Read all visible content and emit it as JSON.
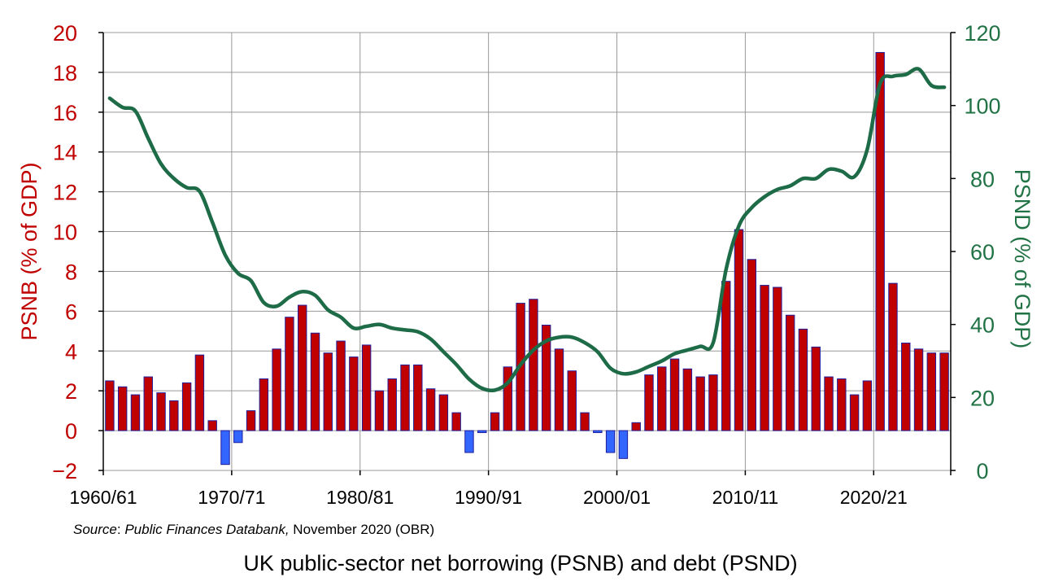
{
  "chart_data": {
    "type": "bar",
    "title": "UK public-sector net borrowing (PSNB) and debt (PSND)",
    "source": {
      "prefix": "Source",
      "sep": ": ",
      "name": "Public Finances Databank,",
      "rest": " November 2020 (OBR)"
    },
    "x_tick_labels": [
      "1960/61",
      "1970/71",
      "1980/81",
      "1990/91",
      "2000/01",
      "2010/11",
      "2020/21"
    ],
    "y_left": {
      "label": "PSNB (% of GDP)",
      "min": -2,
      "max": 20,
      "step": 2,
      "tick_labels": [
        "−2",
        "0",
        "2",
        "4",
        "6",
        "8",
        "10",
        "12",
        "14",
        "16",
        "18",
        "20"
      ],
      "color": "#c00000"
    },
    "y_right": {
      "label": "PSND (% of GDP)",
      "min": 0,
      "max": 120,
      "step": 20,
      "tick_labels": [
        "0",
        "20",
        "40",
        "60",
        "80",
        "100",
        "120"
      ],
      "color": "#217346"
    },
    "grid": true,
    "colors": {
      "bar_positive": "#c00000",
      "bar_negative": "#3366ff",
      "bar_edge": "#1f1f9e",
      "line": "#1e6b48",
      "grid": "#999999"
    },
    "x": [
      "1960/61",
      "1961/62",
      "1962/63",
      "1963/64",
      "1964/65",
      "1965/66",
      "1966/67",
      "1967/68",
      "1968/69",
      "1969/70",
      "1970/71",
      "1971/72",
      "1972/73",
      "1973/74",
      "1974/75",
      "1975/76",
      "1976/77",
      "1977/78",
      "1978/79",
      "1979/80",
      "1980/81",
      "1981/82",
      "1982/83",
      "1983/84",
      "1984/85",
      "1985/86",
      "1986/87",
      "1987/88",
      "1988/89",
      "1989/90",
      "1990/91",
      "1991/92",
      "1992/93",
      "1993/94",
      "1994/95",
      "1995/96",
      "1996/97",
      "1997/98",
      "1998/99",
      "1999/00",
      "2000/01",
      "2001/02",
      "2002/03",
      "2003/04",
      "2004/05",
      "2005/06",
      "2006/07",
      "2007/08",
      "2008/09",
      "2009/10",
      "2010/11",
      "2011/12",
      "2012/13",
      "2013/14",
      "2014/15",
      "2015/16",
      "2016/17",
      "2017/18",
      "2018/19",
      "2019/20",
      "2020/21",
      "2021/22",
      "2022/23",
      "2023/24",
      "2024/25",
      "2025/26"
    ],
    "series": [
      {
        "name": "PSNB (% of GDP)",
        "type": "bar",
        "axis": "left",
        "values": [
          2.5,
          2.2,
          1.8,
          2.7,
          1.9,
          1.5,
          2.4,
          3.8,
          0.5,
          -1.7,
          -0.6,
          1.0,
          2.6,
          4.1,
          5.7,
          6.3,
          4.9,
          3.9,
          4.5,
          3.7,
          4.3,
          2.0,
          2.6,
          3.3,
          3.3,
          2.1,
          1.8,
          0.9,
          -1.1,
          -0.1,
          0.9,
          3.2,
          6.4,
          6.6,
          5.3,
          4.1,
          3.0,
          0.9,
          -0.1,
          -1.1,
          -1.4,
          0.4,
          2.8,
          3.2,
          3.6,
          3.1,
          2.7,
          2.8,
          7.5,
          10.1,
          8.6,
          7.3,
          7.2,
          5.8,
          5.1,
          4.2,
          2.7,
          2.6,
          1.8,
          2.5,
          19.0,
          7.4,
          4.4,
          4.1,
          3.9,
          3.9
        ]
      },
      {
        "name": "PSND (% of GDP)",
        "type": "line",
        "axis": "right",
        "values": [
          102,
          99.5,
          98.5,
          91,
          84,
          80,
          77.5,
          76.5,
          68,
          59,
          54,
          52,
          46,
          45,
          47.5,
          49,
          48,
          44,
          42,
          39,
          39.5,
          40,
          39,
          38.5,
          38,
          36,
          32.5,
          29,
          25,
          22.5,
          22,
          24,
          29,
          33,
          35.5,
          36.5,
          36.5,
          35,
          32.5,
          28,
          26.5,
          27,
          28.5,
          30,
          32,
          33,
          34,
          35,
          55,
          67,
          72,
          75,
          77,
          78,
          80,
          80,
          82.5,
          82,
          80.5,
          88,
          106,
          108,
          108.5,
          110,
          105.5,
          105
        ]
      }
    ]
  }
}
